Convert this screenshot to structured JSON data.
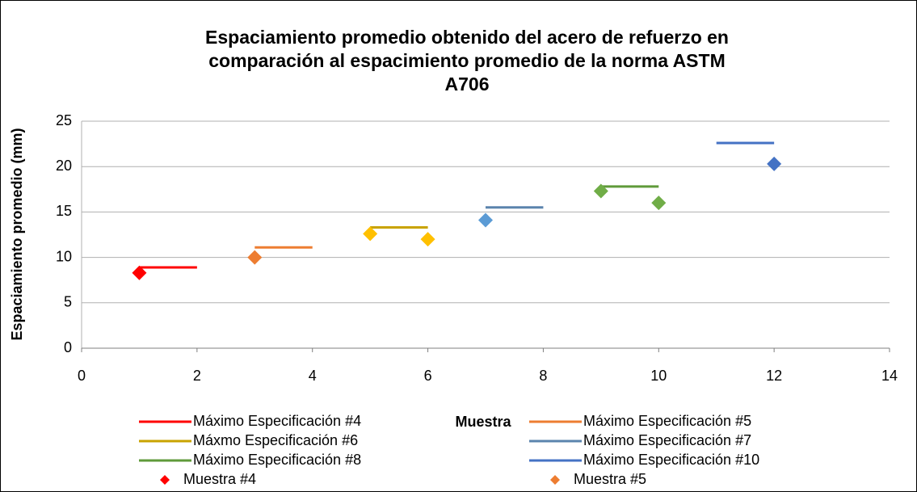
{
  "chart_data": {
    "type": "scatter",
    "title": "Espaciamiento promedio obtenido del acero de refuerzo en comparación al espacimiento promedio de la norma ASTM A706",
    "x_label": "Muestra",
    "y_label": "Espaciamiento promedio (mm)",
    "xlim": [
      0,
      14
    ],
    "xticks": [
      0,
      2,
      4,
      6,
      8,
      10,
      12,
      14
    ],
    "ylim": [
      0,
      25
    ],
    "yticks": [
      0,
      5,
      10,
      15,
      20,
      25
    ],
    "grid": true,
    "legend": "bottom",
    "series": [
      {
        "name": "Máximo Especificación #4",
        "kind": "line",
        "color": "#ff0000",
        "x": [
          1,
          2
        ],
        "values": [
          8.9,
          8.9
        ]
      },
      {
        "name": "Máximo Especificación #5",
        "kind": "line",
        "color": "#ed7d31",
        "x": [
          3,
          4
        ],
        "values": [
          11.1,
          11.1
        ]
      },
      {
        "name": "Máxmo Especificación #6",
        "kind": "line",
        "color": "#c9a300",
        "x": [
          5,
          6
        ],
        "values": [
          13.3,
          13.3
        ]
      },
      {
        "name": "Máximo Especificación #7",
        "kind": "line",
        "color": "#5b84ad",
        "x": [
          7,
          8
        ],
        "values": [
          15.5,
          15.5
        ]
      },
      {
        "name": "Máximo Especificación #8",
        "kind": "line",
        "color": "#5f9a3a",
        "x": [
          9,
          10
        ],
        "values": [
          17.8,
          17.8
        ]
      },
      {
        "name": "Máximo Especificación #10",
        "kind": "line",
        "color": "#4472c4",
        "x": [
          11,
          12
        ],
        "values": [
          22.6,
          22.6
        ]
      },
      {
        "name": "Muestra #4",
        "kind": "marker",
        "color": "#ff0000",
        "x": [
          1
        ],
        "values": [
          8.3
        ]
      },
      {
        "name": "Muestra #5",
        "kind": "marker",
        "color": "#ed7d31",
        "x": [
          3
        ],
        "values": [
          10.0
        ]
      },
      {
        "kind": "marker",
        "color": "#ffc000",
        "x": [
          5,
          6
        ],
        "values": [
          12.6,
          12.0
        ]
      },
      {
        "kind": "marker",
        "color": "#5b9bd5",
        "x": [
          7
        ],
        "values": [
          14.1
        ]
      },
      {
        "kind": "marker",
        "color": "#70ad47",
        "x": [
          9,
          10
        ],
        "values": [
          17.3,
          16.0
        ]
      },
      {
        "kind": "marker",
        "color": "#4472c4",
        "x": [
          12
        ],
        "values": [
          20.3
        ]
      }
    ]
  }
}
